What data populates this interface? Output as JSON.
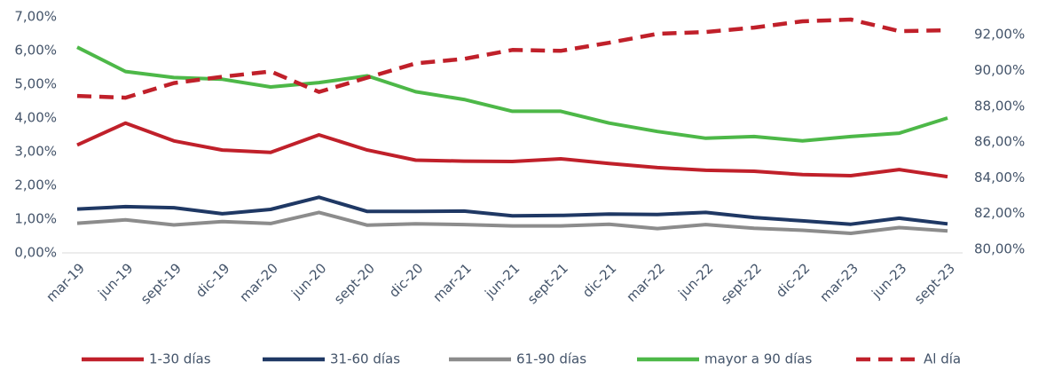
{
  "chart_data": {
    "type": "line",
    "categories": [
      "mar-19",
      "jun-19",
      "sept-19",
      "dic-19",
      "mar-20",
      "jun-20",
      "sept-20",
      "dic-20",
      "mar-21",
      "jun-21",
      "sept-21",
      "dic-21",
      "mar-22",
      "jun-22",
      "sept-22",
      "dic-22",
      "mar-23",
      "jun-23",
      "sept-23"
    ],
    "series": [
      {
        "name": "1-30 días",
        "color": "#c0202a",
        "values": [
          3.2,
          3.85,
          3.32,
          3.05,
          2.98,
          3.5,
          3.05,
          2.75,
          2.72,
          2.71,
          2.79,
          2.65,
          2.53,
          2.45,
          2.42,
          2.32,
          2.29,
          2.47,
          2.26
        ]
      },
      {
        "name": "31-60 días",
        "color": "#1f3864",
        "values": [
          1.3,
          1.37,
          1.34,
          1.16,
          1.29,
          1.65,
          1.23,
          1.23,
          1.24,
          1.1,
          1.11,
          1.15,
          1.14,
          1.2,
          1.05,
          0.95,
          0.85,
          1.03,
          0.86
        ]
      },
      {
        "name": "61-90 días",
        "color": "#8c8c8c",
        "values": [
          0.88,
          0.98,
          0.83,
          0.93,
          0.87,
          1.2,
          0.82,
          0.86,
          0.84,
          0.8,
          0.8,
          0.85,
          0.72,
          0.84,
          0.73,
          0.67,
          0.58,
          0.75,
          0.65
        ]
      },
      {
        "name": "mayor a 90 días",
        "color": "#4db848",
        "values": [
          6.1,
          5.38,
          5.2,
          5.15,
          4.92,
          5.05,
          5.25,
          4.78,
          4.55,
          4.2,
          4.2,
          3.85,
          3.6,
          3.4,
          3.45,
          3.32,
          3.45,
          3.55,
          4.0
        ]
      },
      {
        "name": "Al día",
        "color": "#c0202a",
        "line_style": "dashed",
        "axis": "y2",
        "values": [
          88.58,
          88.48,
          89.3,
          89.65,
          89.95,
          88.8,
          89.6,
          90.4,
          90.65,
          91.15,
          91.1,
          91.55,
          92.05,
          92.15,
          92.4,
          92.75,
          92.85,
          92.2,
          92.25
        ]
      }
    ],
    "ylim": [
      0,
      7
    ],
    "yticks": [
      {
        "value": 0,
        "label": "0,00%"
      },
      {
        "value": 1,
        "label": "1,00%"
      },
      {
        "value": 2,
        "label": "2,00%"
      },
      {
        "value": 3,
        "label": "3,00%"
      },
      {
        "value": 4,
        "label": "4,00%"
      },
      {
        "value": 5,
        "label": "5,00%"
      },
      {
        "value": 6,
        "label": "6,00%"
      },
      {
        "value": 7,
        "label": "7,00%"
      }
    ],
    "y2lim": [
      79.8,
      93
    ],
    "y2ticks": [
      {
        "value": 80,
        "label": "80,00%"
      },
      {
        "value": 82,
        "label": "82,00%"
      },
      {
        "value": 84,
        "label": "84,00%"
      },
      {
        "value": 86,
        "label": "86,00%"
      },
      {
        "value": 88,
        "label": "88,00%"
      },
      {
        "value": 90,
        "label": "90,00%"
      },
      {
        "value": 92,
        "label": "92,00%"
      }
    ],
    "legend": "bottom"
  }
}
